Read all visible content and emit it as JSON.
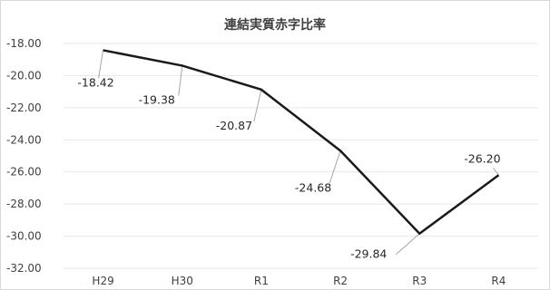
{
  "chart_data": {
    "type": "line",
    "title": "連結実質赤字比率",
    "categories": [
      "H29",
      "H30",
      "R1",
      "R2",
      "R3",
      "R4"
    ],
    "series": [
      {
        "values": [
          -18.42,
          -19.38,
          -20.87,
          -24.68,
          -29.84,
          -26.2
        ]
      }
    ],
    "data_labels": [
      "-18.42",
      "-19.38",
      "-20.87",
      "-24.68",
      "-29.84",
      "-26.20"
    ],
    "y_tick_labels": [
      "-18.00",
      "-20.00",
      "-22.00",
      "-24.00",
      "-26.00",
      "-28.00",
      "-30.00",
      "-32.00"
    ],
    "ylim": [
      -32,
      -18
    ],
    "ystep": 2,
    "grid": true,
    "legend": "none",
    "line_color": "#1a1a1a"
  }
}
